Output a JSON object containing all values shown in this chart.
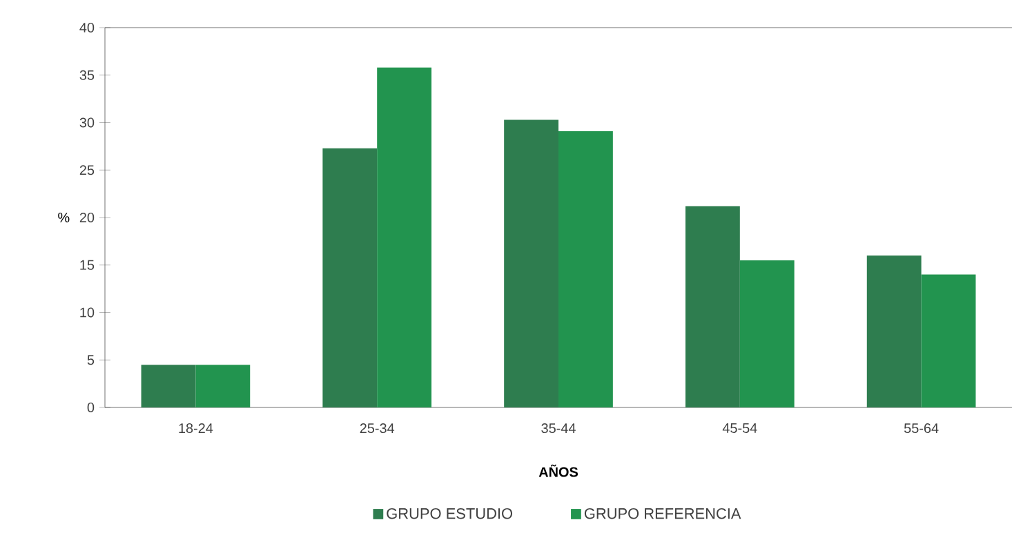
{
  "chart_data": {
    "type": "bar",
    "xlabel": "**AÑOS**",
    "ylabel": "%",
    "categories": [
      "18-24",
      "25-34",
      "35-44",
      "45-54",
      "55-64"
    ],
    "series": [
      {
        "name": "GRUPO ESTUDIO",
        "color": "#2e7d4f",
        "values": [
          4.5,
          27.3,
          30.3,
          21.2,
          16.0
        ]
      },
      {
        "name": "GRUPO REFERENCIA",
        "color": "#22944f",
        "values": [
          4.5,
          35.8,
          29.1,
          15.5,
          14.0
        ]
      }
    ],
    "ylim": [
      0,
      40
    ],
    "yticks": [
      0,
      5,
      10,
      15,
      20,
      25,
      30,
      35,
      40
    ],
    "grid": false,
    "legend": "bottom"
  }
}
